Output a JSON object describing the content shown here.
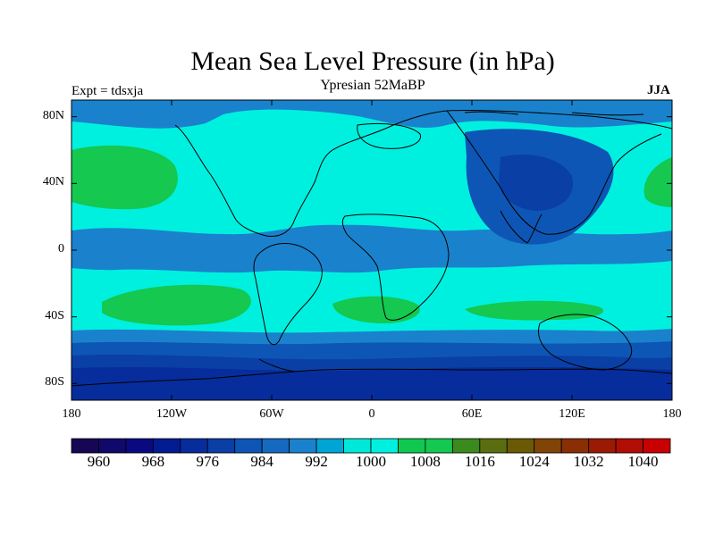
{
  "map": {
    "title": "Mean Sea Level Pressure (in hPa)",
    "left_label": "Expt = tdsxja",
    "center_label": "Ypresian  52MaBP",
    "right_label": "JJA",
    "projection": "cylindrical equidistant",
    "lon_range": [
      -180,
      180
    ],
    "lat_range": [
      -90,
      90
    ],
    "lat_ticks": [
      {
        "value": 80,
        "label": "80N"
      },
      {
        "value": 40,
        "label": "40N"
      },
      {
        "value": 0,
        "label": "0"
      },
      {
        "value": -40,
        "label": "40S"
      },
      {
        "value": -80,
        "label": "80S"
      }
    ],
    "lon_ticks": [
      {
        "value": -180,
        "label": "180"
      },
      {
        "value": -120,
        "label": "120W"
      },
      {
        "value": -60,
        "label": "60W"
      },
      {
        "value": 0,
        "label": "0"
      },
      {
        "value": 60,
        "label": "60E"
      },
      {
        "value": 120,
        "label": "120E"
      },
      {
        "value": 180,
        "label": "180"
      }
    ],
    "colorbar": {
      "levels": [
        956,
        960,
        964,
        968,
        972,
        976,
        980,
        984,
        988,
        992,
        996,
        1000,
        1004,
        1008,
        1012,
        1016,
        1020,
        1024,
        1028,
        1032,
        1036,
        1040
      ],
      "labeled": [
        "960",
        "968",
        "976",
        "984",
        "992",
        "1000",
        "1008",
        "1016",
        "1024",
        "1032",
        "1040"
      ],
      "colors": [
        "#160654",
        "#10086a",
        "#0a0a80",
        "#031b91",
        "#062d9b",
        "#0a3fa6",
        "#0e56b5",
        "#1669c0",
        "#1a82cc",
        "#00a4d5",
        "#00e8d8",
        "#00f0e0",
        "#10c850",
        "#14c850",
        "#3a8a1e",
        "#5a6e10",
        "#6a5a06",
        "#804406",
        "#8a2e04",
        "#9a1a04",
        "#b00e04",
        "#c80000"
      ]
    },
    "pressure_zones": [
      {
        "name": "southern-ocean-low",
        "hpa": 976
      },
      {
        "name": "southern-ocean-trough",
        "hpa": 988
      },
      {
        "name": "south-pacific-high",
        "hpa": 1008
      },
      {
        "name": "south-atlantic-high",
        "hpa": 1008
      },
      {
        "name": "south-indian-high",
        "hpa": 1008
      },
      {
        "name": "north-pacific-high",
        "hpa": 1008
      },
      {
        "name": "asian-monsoon-low",
        "hpa": 980
      },
      {
        "name": "equatorial-trough",
        "hpa": 992
      },
      {
        "name": "background",
        "hpa": 1000
      }
    ]
  }
}
